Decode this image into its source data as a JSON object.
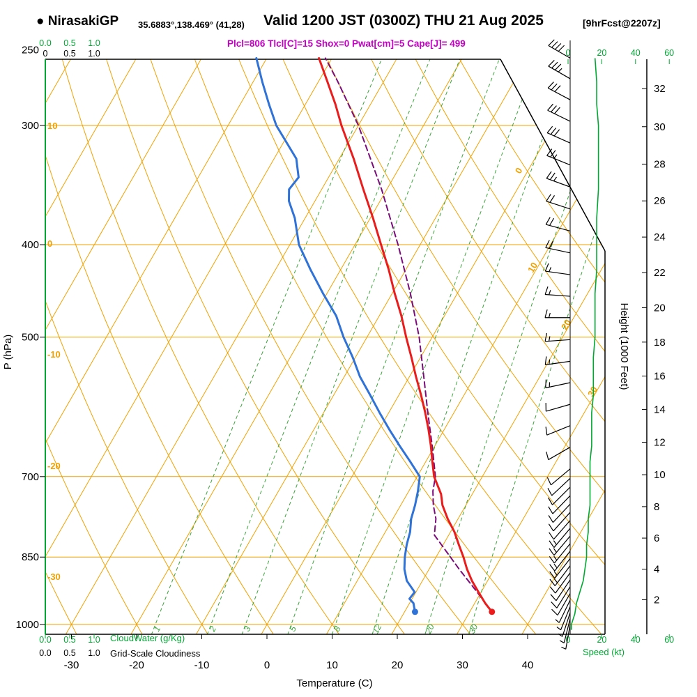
{
  "header": {
    "bullet": "●",
    "station": "NirasakiGP",
    "coords": "35.6883°,138.469° (41,28)",
    "valid": "Valid 1200 JST (0300Z) THU 21 Aug 2025",
    "fcst": "[9hrFcst@2207z]",
    "params": "Plcl=806 Tlcl[C]=15 Shox=0 Pwat[cm]=5 Cape[J]= 499"
  },
  "colors": {
    "grid_orange": "#f0a202",
    "mix_green": "#3aa63a",
    "axis_green": "#00a832",
    "temp_red": "#ea1c1c",
    "dew_blue": "#2f72d8",
    "parcel_purple": "#7a0d7a",
    "magenta": "#c400c4",
    "black": "#000000"
  },
  "axes": {
    "pressure": {
      "label": "P (hPa)",
      "ticks": [
        250,
        300,
        400,
        500,
        700,
        850,
        1000
      ]
    },
    "temperature": {
      "label": "Temperature (C)",
      "ticks": [
        -30,
        -20,
        -10,
        0,
        10,
        20,
        30,
        40
      ]
    },
    "height": {
      "label": "Height (1000 Feet)",
      "ticks": [
        2,
        4,
        6,
        8,
        10,
        12,
        14,
        16,
        18,
        20,
        22,
        24,
        26,
        28,
        30,
        32
      ]
    },
    "speed": {
      "label": "Speed (kt)",
      "ticks": [
        0,
        20,
        40,
        60
      ]
    },
    "cloudwater": {
      "label": "CloudWater (g/Kg)"
    },
    "cloudiness": {
      "label": "Grid-Scale Cloudiness"
    },
    "top_green_values": [
      "0.0",
      "0.5",
      "1.0"
    ],
    "top_black_values": [
      "0",
      "0.5",
      "1.0"
    ],
    "bottom_green_values": [
      "0.0",
      "0.5",
      "1.0"
    ],
    "bottom_black_values": [
      "0.0",
      "0.5",
      "1.0"
    ]
  },
  "chart_data": {
    "type": "line",
    "subtype": "skew-t-log-p-sounding",
    "title": "NirasakiGP Valid 1200 JST (0300Z) THU 21 Aug 2025",
    "xlabel": "Temperature (C)",
    "ylabel": "P (hPa)",
    "y2label": "Height (1000 Feet)",
    "xlim": [
      -35,
      45
    ],
    "plim": [
      255,
      1013
    ],
    "parameters": {
      "Plcl": 806,
      "Tlcl_C": 15,
      "Shox": 0,
      "Pwat_cm": 5,
      "Cape_J": 499
    },
    "pressure_lines": [
      300,
      400,
      500,
      700,
      850,
      1000
    ],
    "isotherm_step_c": 10,
    "mixing_ratio_lines": [
      1,
      2,
      3,
      5,
      8,
      12,
      20,
      30
    ],
    "adiabat_labels": [
      {
        "v": "10",
        "x": 68,
        "y": 185
      },
      {
        "v": "0",
        "x": 68,
        "y": 354
      },
      {
        "v": "-10",
        "x": 68,
        "y": 513
      },
      {
        "v": "-20",
        "x": 68,
        "y": 673
      },
      {
        "v": "-30",
        "x": 68,
        "y": 832
      }
    ],
    "isotherm_labels": [
      {
        "v": "0",
        "x": 748,
        "y": 247
      },
      {
        "v": "10",
        "x": 768,
        "y": 386
      },
      {
        "v": "20",
        "x": 816,
        "y": 468
      },
      {
        "v": "30",
        "x": 854,
        "y": 564
      }
    ],
    "temperature_c": {
      "name": "Temperature",
      "points": [
        [
          970,
          33.4
        ],
        [
          950,
          31.6
        ],
        [
          925,
          29.6
        ],
        [
          900,
          27.6
        ],
        [
          875,
          25.8
        ],
        [
          850,
          24.2
        ],
        [
          825,
          22.4
        ],
        [
          800,
          20.6
        ],
        [
          775,
          18.4
        ],
        [
          750,
          16.4
        ],
        [
          730,
          15.2
        ],
        [
          700,
          12.6
        ],
        [
          675,
          11.0
        ],
        [
          650,
          9.4
        ],
        [
          625,
          7.6
        ],
        [
          600,
          5.6
        ],
        [
          575,
          3.4
        ],
        [
          550,
          1.0
        ],
        [
          525,
          -1.4
        ],
        [
          500,
          -4.0
        ],
        [
          475,
          -6.6
        ],
        [
          450,
          -9.6
        ],
        [
          425,
          -12.6
        ],
        [
          400,
          -16.0
        ],
        [
          375,
          -19.6
        ],
        [
          350,
          -23.6
        ],
        [
          325,
          -27.8
        ],
        [
          300,
          -32.6
        ],
        [
          285,
          -35.4
        ],
        [
          270,
          -38.6
        ],
        [
          255,
          -42.0
        ]
      ]
    },
    "dewpoint_c": {
      "name": "Dew Point",
      "points": [
        [
          970,
          21.6
        ],
        [
          950,
          20.6
        ],
        [
          940,
          19.6
        ],
        [
          925,
          19.8
        ],
        [
          900,
          17.6
        ],
        [
          875,
          16.2
        ],
        [
          850,
          15.2
        ],
        [
          825,
          14.4
        ],
        [
          800,
          13.8
        ],
        [
          775,
          12.8
        ],
        [
          750,
          12.2
        ],
        [
          725,
          11.4
        ],
        [
          700,
          10.4
        ],
        [
          675,
          7.6
        ],
        [
          650,
          4.6
        ],
        [
          625,
          1.6
        ],
        [
          600,
          -1.4
        ],
        [
          575,
          -4.4
        ],
        [
          550,
          -7.6
        ],
        [
          525,
          -10.4
        ],
        [
          500,
          -13.6
        ],
        [
          475,
          -16.6
        ],
        [
          450,
          -20.6
        ],
        [
          425,
          -24.6
        ],
        [
          400,
          -28.6
        ],
        [
          375,
          -31.6
        ],
        [
          360,
          -34.0
        ],
        [
          350,
          -35.0
        ],
        [
          340,
          -34.6
        ],
        [
          325,
          -36.6
        ],
        [
          300,
          -42.6
        ],
        [
          285,
          -45.6
        ],
        [
          270,
          -48.6
        ],
        [
          255,
          -51.6
        ]
      ]
    },
    "parcel_c": {
      "name": "Parcel",
      "points": [
        [
          970,
          33.4
        ],
        [
          925,
          29.4
        ],
        [
          875,
          24.6
        ],
        [
          850,
          22.2
        ],
        [
          806,
          17.8
        ],
        [
          775,
          16.6
        ],
        [
          750,
          15.0
        ],
        [
          725,
          13.7
        ],
        [
          700,
          12.8
        ],
        [
          650,
          9.6
        ],
        [
          600,
          6.0
        ],
        [
          550,
          2.2
        ],
        [
          500,
          -2.0
        ],
        [
          450,
          -7.2
        ],
        [
          400,
          -13.4
        ],
        [
          350,
          -20.8
        ],
        [
          300,
          -30.0
        ],
        [
          270,
          -37.0
        ],
        [
          255,
          -41.0
        ]
      ]
    },
    "wind_barbs_kt": [
      [
        255,
        40,
        300
      ],
      [
        268,
        35,
        300
      ],
      [
        282,
        32,
        298
      ],
      [
        297,
        30,
        296
      ],
      [
        313,
        28,
        294
      ],
      [
        330,
        25,
        292
      ],
      [
        348,
        24,
        290
      ],
      [
        367,
        22,
        288
      ],
      [
        387,
        20,
        285
      ],
      [
        408,
        18,
        282
      ],
      [
        430,
        17,
        278
      ],
      [
        453,
        16,
        274
      ],
      [
        477,
        15,
        270
      ],
      [
        503,
        15,
        266
      ],
      [
        530,
        14,
        262
      ],
      [
        558,
        13,
        258
      ],
      [
        588,
        12,
        254
      ],
      [
        619,
        11,
        248
      ],
      [
        652,
        10,
        240
      ],
      [
        687,
        10,
        230
      ],
      [
        703,
        10,
        227
      ],
      [
        718,
        11,
        225
      ],
      [
        733,
        11,
        224
      ],
      [
        748,
        12,
        223
      ],
      [
        763,
        12,
        222
      ],
      [
        778,
        12,
        221
      ],
      [
        793,
        13,
        220
      ],
      [
        808,
        13,
        220
      ],
      [
        823,
        13,
        219
      ],
      [
        838,
        14,
        218
      ],
      [
        853,
        14,
        218
      ],
      [
        868,
        13,
        217
      ],
      [
        883,
        12,
        216
      ],
      [
        898,
        11,
        214
      ],
      [
        913,
        9,
        212
      ],
      [
        928,
        8,
        210
      ],
      [
        943,
        7,
        206
      ],
      [
        958,
        6,
        202
      ],
      [
        972,
        5,
        198
      ],
      [
        986,
        4,
        194
      ],
      [
        1000,
        3,
        190
      ]
    ],
    "speed_profile_kt": [
      [
        1013,
        2
      ],
      [
        1000,
        2
      ],
      [
        975,
        4
      ],
      [
        950,
        5
      ],
      [
        925,
        7
      ],
      [
        900,
        9
      ],
      [
        875,
        10
      ],
      [
        850,
        11
      ],
      [
        825,
        11
      ],
      [
        800,
        12
      ],
      [
        775,
        12
      ],
      [
        750,
        13
      ],
      [
        725,
        13
      ],
      [
        700,
        13
      ],
      [
        675,
        13
      ],
      [
        650,
        14
      ],
      [
        625,
        14
      ],
      [
        600,
        14
      ],
      [
        575,
        15
      ],
      [
        550,
        15
      ],
      [
        525,
        15
      ],
      [
        500,
        16
      ],
      [
        475,
        16
      ],
      [
        450,
        16
      ],
      [
        425,
        17
      ],
      [
        400,
        17
      ],
      [
        375,
        17
      ],
      [
        350,
        18
      ],
      [
        325,
        18
      ],
      [
        300,
        18
      ],
      [
        285,
        17
      ],
      [
        270,
        17
      ],
      [
        255,
        16
      ]
    ]
  }
}
